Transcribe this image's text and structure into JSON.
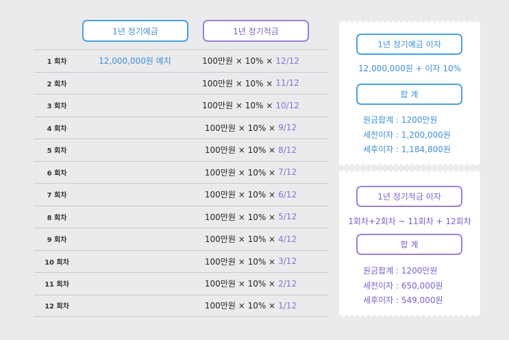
{
  "header": {
    "deposit_label": "1년 정기예금",
    "savings_label": "1년 정기적금"
  },
  "rows": [
    {
      "round": "1 회차",
      "deposit": "12,000,000원 예치",
      "savings_base": "100만원 × 10% ×",
      "savings_frac": "12/12"
    },
    {
      "round": "2 회차",
      "deposit": "",
      "savings_base": "100만원 × 10% ×",
      "savings_frac": "11/12"
    },
    {
      "round": "3 회차",
      "deposit": "",
      "savings_base": "100만원 × 10% ×",
      "savings_frac": "10/12"
    },
    {
      "round": "4 회차",
      "deposit": "",
      "savings_base": "100만원 × 10% ×",
      "savings_frac": "9/12"
    },
    {
      "round": "5 회차",
      "deposit": "",
      "savings_base": "100만원 × 10% ×",
      "savings_frac": "8/12"
    },
    {
      "round": "6 회차",
      "deposit": "",
      "savings_base": "100만원 × 10% ×",
      "savings_frac": "7/12"
    },
    {
      "round": "7 회차",
      "deposit": "",
      "savings_base": "100만원 × 10% ×",
      "savings_frac": "6/12"
    },
    {
      "round": "8 회차",
      "deposit": "",
      "savings_base": "100만원 × 10% ×",
      "savings_frac": "5/12"
    },
    {
      "round": "9 회차",
      "deposit": "",
      "savings_base": "100만원 × 10% ×",
      "savings_frac": "4/12"
    },
    {
      "round": "10 회차",
      "deposit": "",
      "savings_base": "100만원 × 10% ×",
      "savings_frac": "3/12"
    },
    {
      "round": "11 회차",
      "deposit": "",
      "savings_base": "100만원 × 10% ×",
      "savings_frac": "2/12"
    },
    {
      "round": "12 회차",
      "deposit": "",
      "savings_base": "100만원 × 10% ×",
      "savings_frac": "1/12"
    }
  ],
  "deposit_card": {
    "title": "1년 정기예금 이자",
    "formula": "12,000,000원 + 이자 10%",
    "total_label": "합 계",
    "principal": "원금합계 : 1200만원",
    "pretax": "세전이자 : 1,200,000원",
    "aftertax": "세후이자 : 1,184,800원"
  },
  "savings_card": {
    "title": "1년 정기적금 이자",
    "formula": "1회차+2회차 ~ 11회차 + 12회차",
    "total_label": "합 계",
    "principal": "원금합계 : 1200만원",
    "pretax": "세전이자 : 650,000원",
    "aftertax": "세후이자 : 549,000원"
  },
  "colors": {
    "blue": "#3d8fd6",
    "purple": "#7a5cc9",
    "background": "#ebebed"
  }
}
